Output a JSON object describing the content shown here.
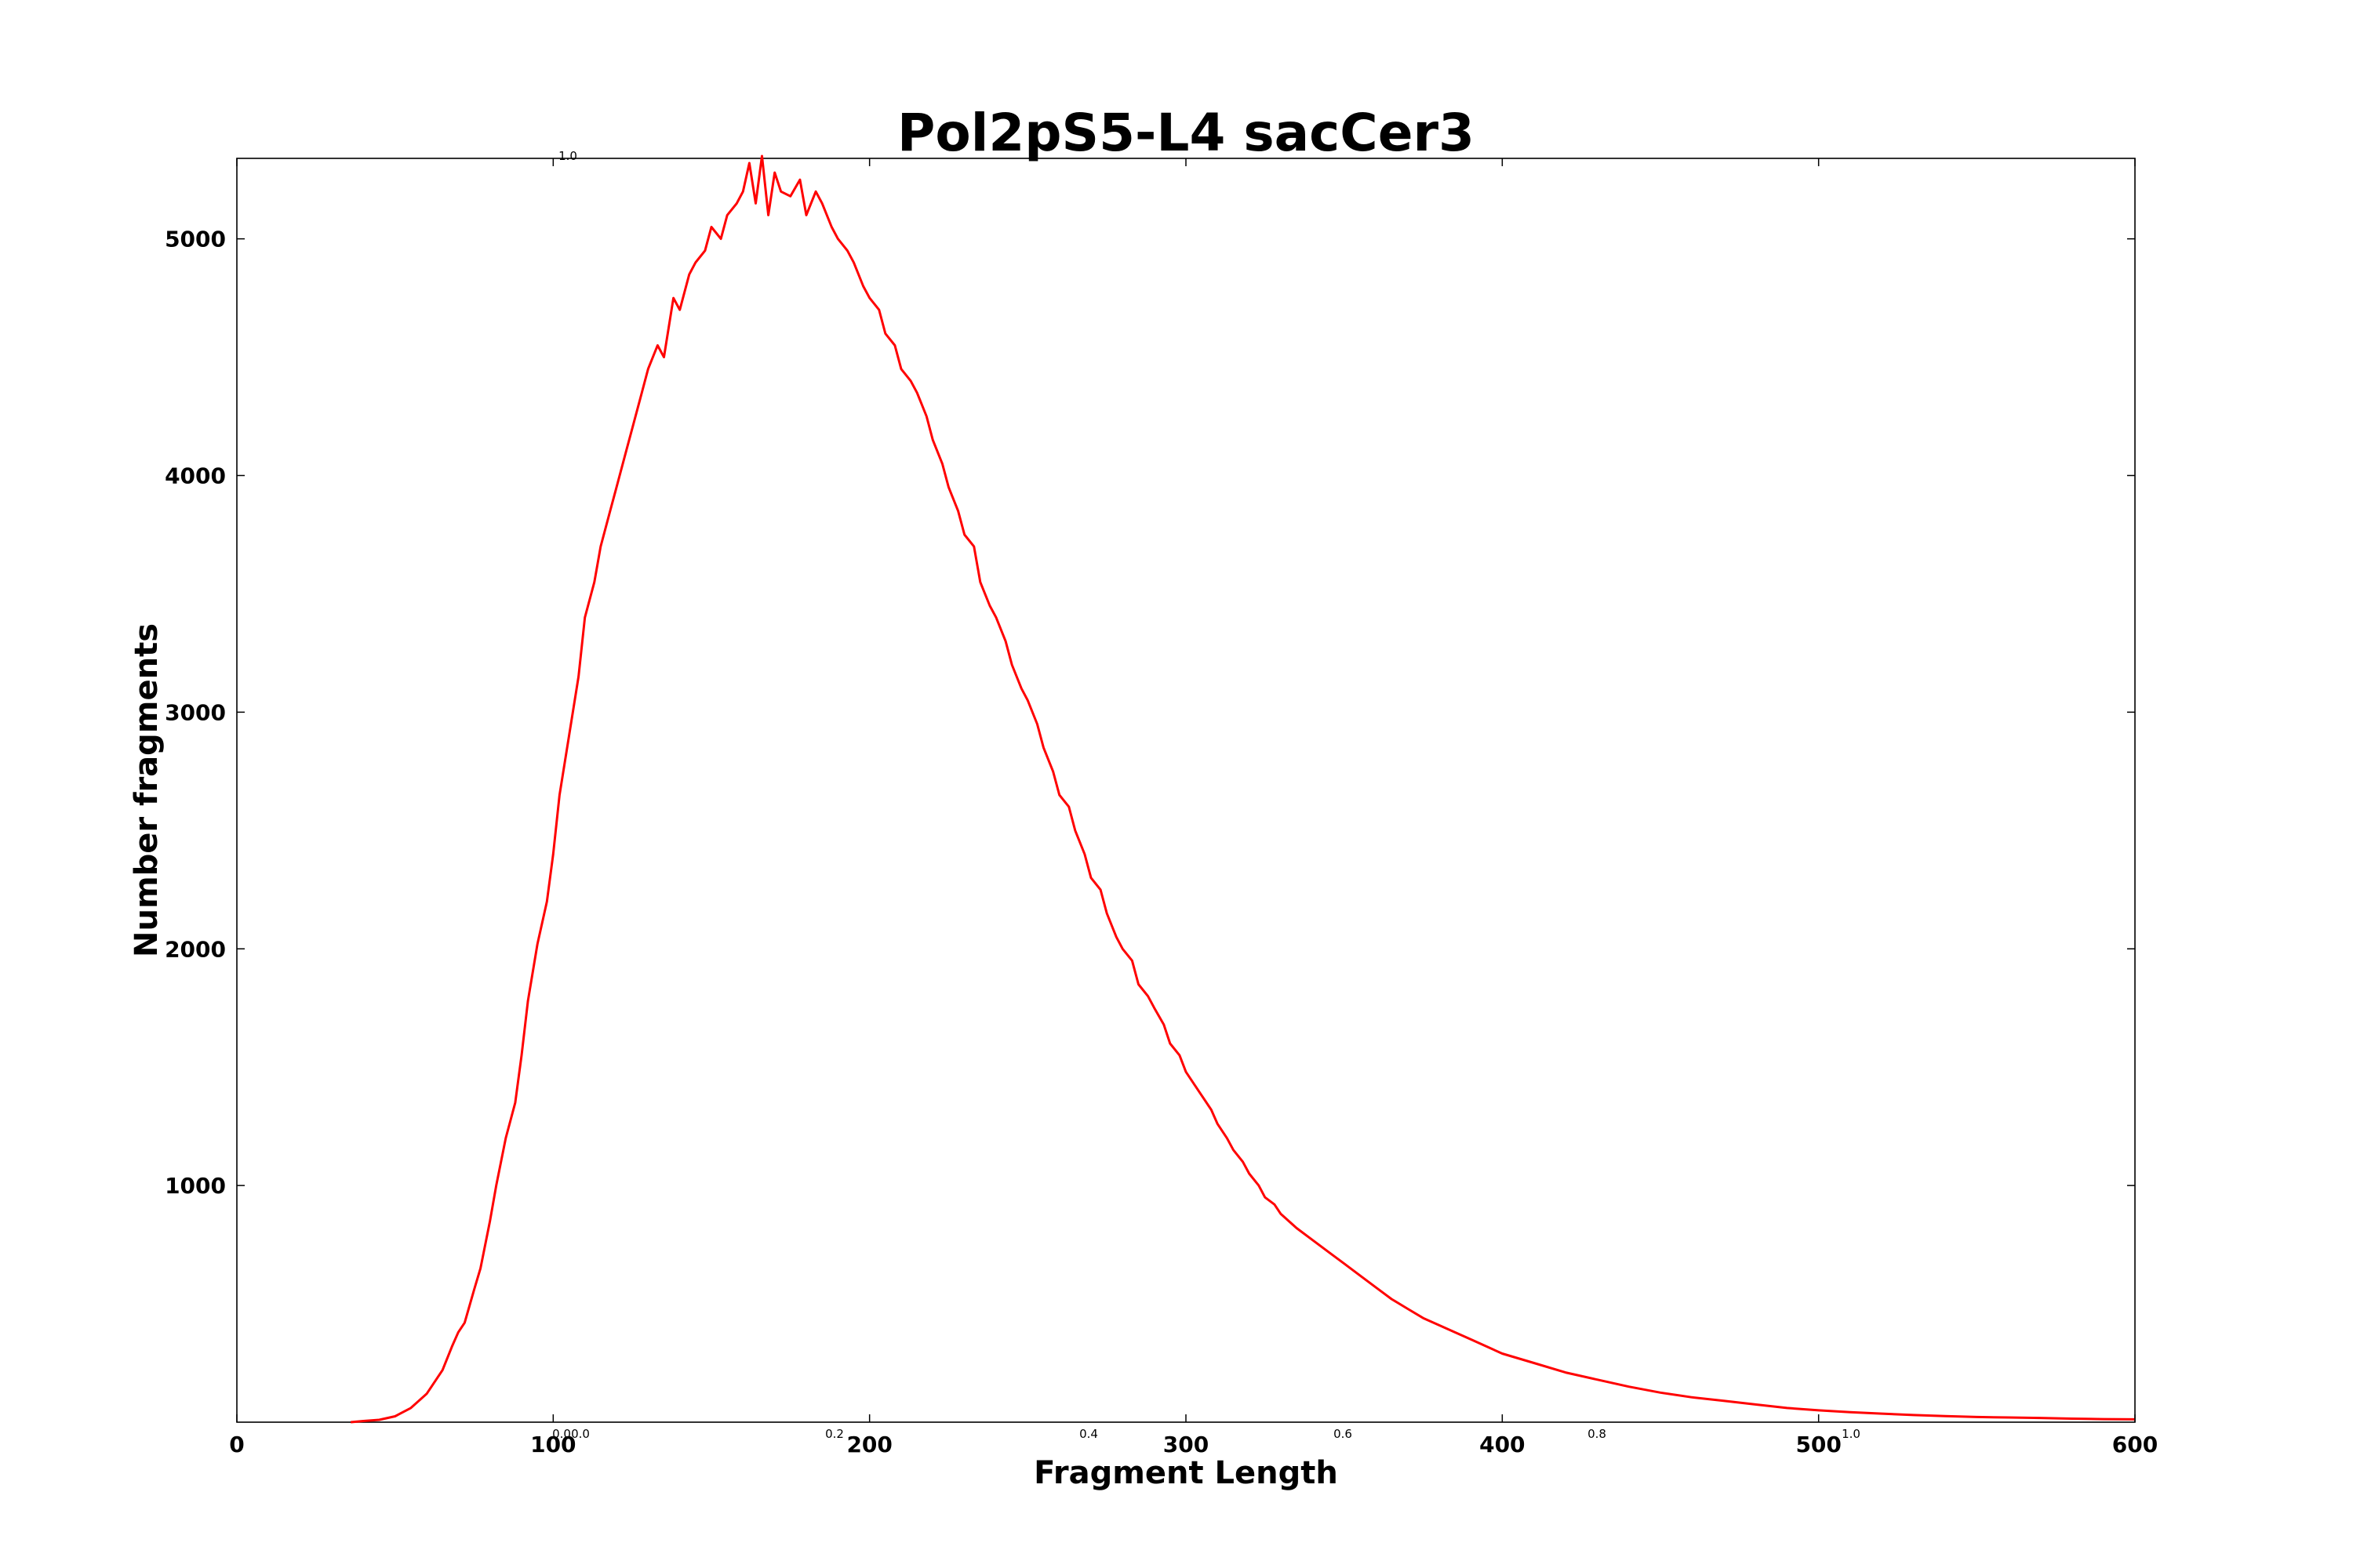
{
  "chart_data": {
    "type": "line",
    "title": "Pol2pS5-L4 sacCer3",
    "xlabel": "Fragment Length",
    "ylabel": "Number fragments",
    "xlim": [
      0,
      600
    ],
    "ylim": [
      0,
      5340
    ],
    "x_ticks": [
      0,
      100,
      200,
      300,
      400,
      500,
      600
    ],
    "y_ticks": [
      1000,
      2000,
      3000,
      4000,
      5000
    ],
    "grid": false,
    "legend": "none",
    "series_color": "#ff0000",
    "overlay_axis": {
      "x_ticks": [
        "0.0",
        "0.2",
        "0.4",
        "0.6",
        "0.8",
        "1.0"
      ],
      "y_tick_top": "1.0",
      "y_tick_bottom": "0.0"
    },
    "series": [
      {
        "x": [
          36,
          40,
          45,
          50,
          55,
          60,
          62,
          65,
          68,
          70,
          72,
          75,
          77,
          80,
          82,
          85,
          88,
          90,
          92,
          95,
          98,
          100,
          102,
          105,
          108,
          110,
          113,
          115,
          118,
          120,
          123,
          125,
          128,
          130,
          133,
          135,
          138,
          140,
          143,
          145,
          148,
          150,
          153,
          155,
          158,
          160,
          162,
          164,
          166,
          168,
          170,
          172,
          175,
          178,
          180,
          183,
          185,
          188,
          190,
          193,
          195,
          198,
          200,
          203,
          205,
          208,
          210,
          213,
          215,
          218,
          220,
          223,
          225,
          228,
          230,
          233,
          235,
          238,
          240,
          243,
          245,
          248,
          250,
          253,
          255,
          258,
          260,
          263,
          265,
          268,
          270,
          273,
          275,
          278,
          280,
          283,
          285,
          288,
          290,
          293,
          295,
          298,
          300,
          303,
          305,
          308,
          310,
          313,
          315,
          318,
          320,
          323,
          325,
          328,
          330,
          335,
          340,
          345,
          350,
          355,
          360,
          365,
          370,
          375,
          380,
          385,
          390,
          395,
          400,
          410,
          420,
          430,
          440,
          450,
          460,
          470,
          480,
          490,
          500,
          510,
          520,
          530,
          540,
          550,
          560,
          570,
          580,
          590,
          600
        ],
        "values": [
          0,
          5,
          10,
          25,
          60,
          120,
          160,
          220,
          320,
          380,
          420,
          560,
          650,
          850,
          1000,
          1200,
          1350,
          1550,
          1780,
          2020,
          2200,
          2400,
          2650,
          2900,
          3150,
          3400,
          3550,
          3700,
          3850,
          3950,
          4100,
          4200,
          4350,
          4450,
          4550,
          4500,
          4750,
          4700,
          4850,
          4900,
          4950,
          5050,
          5000,
          5100,
          5150,
          5200,
          5320,
          5150,
          5350,
          5100,
          5280,
          5200,
          5180,
          5250,
          5100,
          5200,
          5150,
          5050,
          5000,
          4950,
          4900,
          4800,
          4750,
          4700,
          4600,
          4550,
          4450,
          4400,
          4350,
          4250,
          4150,
          4050,
          3950,
          3850,
          3750,
          3700,
          3550,
          3450,
          3400,
          3300,
          3200,
          3100,
          3050,
          2950,
          2850,
          2750,
          2650,
          2600,
          2500,
          2400,
          2300,
          2250,
          2150,
          2050,
          2000,
          1950,
          1850,
          1800,
          1750,
          1680,
          1600,
          1550,
          1480,
          1420,
          1380,
          1320,
          1260,
          1200,
          1150,
          1100,
          1050,
          1000,
          950,
          920,
          880,
          820,
          770,
          720,
          670,
          620,
          570,
          520,
          480,
          440,
          410,
          380,
          350,
          320,
          290,
          250,
          210,
          180,
          150,
          125,
          105,
          90,
          75,
          60,
          50,
          42,
          36,
          30,
          26,
          22,
          20,
          18,
          15,
          13,
          12
        ]
      }
    ]
  }
}
